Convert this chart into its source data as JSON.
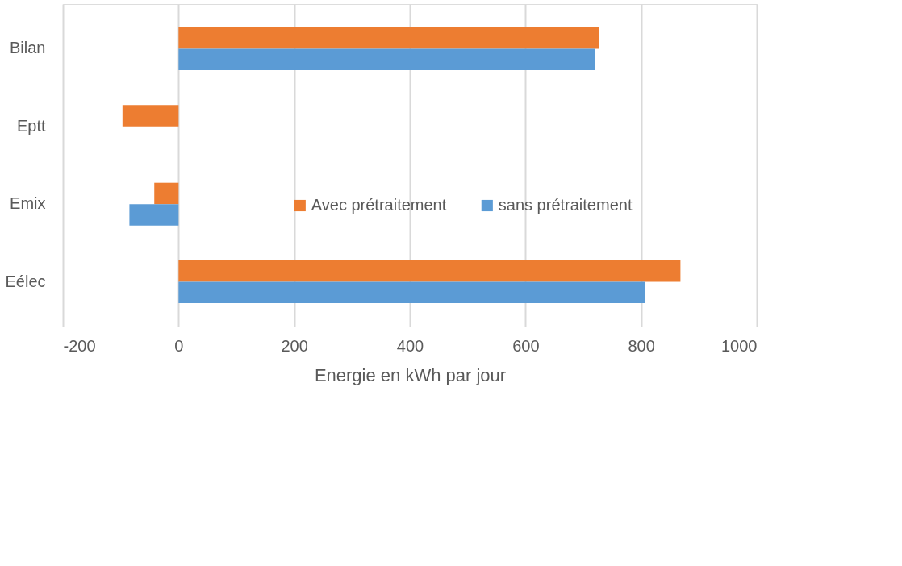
{
  "chart_data": {
    "type": "bar",
    "orientation": "horizontal",
    "categories": [
      "Bilan",
      "Eptt",
      "Emix",
      "Eélec"
    ],
    "series": [
      {
        "name": "Avec prétraitement",
        "color": "#ed7d31",
        "values": [
          727,
          -97,
          -42,
          868
        ]
      },
      {
        "name": "sans prétraitement",
        "color": "#5b9bd5",
        "values": [
          720,
          null,
          -85,
          807
        ]
      }
    ],
    "xlabel": "Energie en kWh par jour",
    "xlim": [
      -200,
      1000
    ],
    "xticks": [
      -200,
      0,
      200,
      400,
      600,
      800,
      1000
    ],
    "grid": "x",
    "legend": "center"
  }
}
